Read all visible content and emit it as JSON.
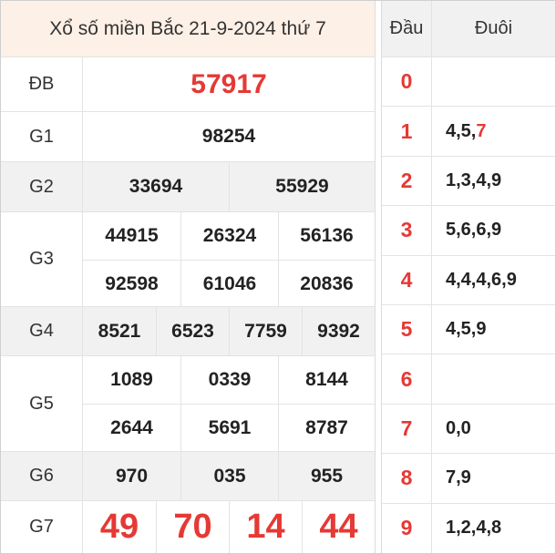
{
  "header": {
    "title": "Xổ số miền Bắc 21-9-2024 thứ 7"
  },
  "prizes": {
    "db": {
      "label": "ĐB",
      "numbers": [
        "57917"
      ]
    },
    "g1": {
      "label": "G1",
      "numbers": [
        "98254"
      ]
    },
    "g2": {
      "label": "G2",
      "numbers": [
        "33694",
        "55929"
      ]
    },
    "g3": {
      "label": "G3",
      "numbers": [
        "44915",
        "26324",
        "56136",
        "92598",
        "61046",
        "20836"
      ]
    },
    "g4": {
      "label": "G4",
      "numbers": [
        "8521",
        "6523",
        "7759",
        "9392"
      ]
    },
    "g5": {
      "label": "G5",
      "numbers": [
        "1089",
        "0339",
        "8144",
        "2644",
        "5691",
        "8787"
      ]
    },
    "g6": {
      "label": "G6",
      "numbers": [
        "970",
        "035",
        "955"
      ]
    },
    "g7": {
      "label": "G7",
      "numbers": [
        "49",
        "70",
        "14",
        "44"
      ]
    }
  },
  "loto": {
    "head_label": "Đầu",
    "tail_label": "Đuôi",
    "rows": [
      {
        "head": "0",
        "tail": ""
      },
      {
        "head": "1",
        "tail": "4,5,",
        "tail_red": "7"
      },
      {
        "head": "2",
        "tail": "1,3,4,9"
      },
      {
        "head": "3",
        "tail": "5,6,6,9"
      },
      {
        "head": "4",
        "tail": "4,4,4,6,9"
      },
      {
        "head": "5",
        "tail": "4,5,9"
      },
      {
        "head": "6",
        "tail": ""
      },
      {
        "head": "7",
        "tail": "0,0"
      },
      {
        "head": "8",
        "tail": "7,9"
      },
      {
        "head": "9",
        "tail": "1,2,4,8"
      }
    ]
  },
  "colors": {
    "accent_red": "#e53935",
    "header_bg": "#fdf0e6",
    "row_gray": "#f1f1f1"
  }
}
